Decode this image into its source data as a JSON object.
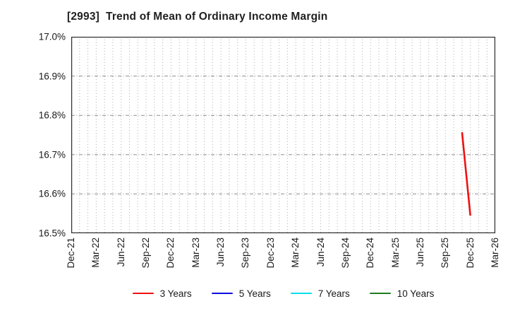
{
  "page": {
    "background": "#ffffff"
  },
  "chart_data": {
    "type": "line",
    "title": "[2993]  Trend of Mean of Ordinary Income Margin",
    "xlabel": "",
    "ylabel": "",
    "ylim": [
      16.5,
      17.0
    ],
    "yticks": [
      {
        "value": 17.0,
        "label": "17.0%"
      },
      {
        "value": 16.9,
        "label": "16.9%"
      },
      {
        "value": 16.8,
        "label": "16.8%"
      },
      {
        "value": 16.7,
        "label": "16.7%"
      },
      {
        "value": 16.6,
        "label": "16.6%"
      },
      {
        "value": 16.5,
        "label": "16.5%"
      }
    ],
    "x_intervals": 51,
    "x_minor_unit": "month",
    "xticks": [
      {
        "index": 0,
        "label": "Dec-21"
      },
      {
        "index": 3,
        "label": "Mar-22"
      },
      {
        "index": 6,
        "label": "Jun-22"
      },
      {
        "index": 9,
        "label": "Sep-22"
      },
      {
        "index": 12,
        "label": "Dec-22"
      },
      {
        "index": 15,
        "label": "Mar-23"
      },
      {
        "index": 18,
        "label": "Jun-23"
      },
      {
        "index": 21,
        "label": "Sep-23"
      },
      {
        "index": 24,
        "label": "Dec-23"
      },
      {
        "index": 27,
        "label": "Mar-24"
      },
      {
        "index": 30,
        "label": "Jun-24"
      },
      {
        "index": 33,
        "label": "Sep-24"
      },
      {
        "index": 36,
        "label": "Dec-24"
      },
      {
        "index": 39,
        "label": "Mar-25"
      },
      {
        "index": 42,
        "label": "Jun-25"
      },
      {
        "index": 45,
        "label": "Sep-25"
      },
      {
        "index": 48,
        "label": "Dec-25"
      },
      {
        "index": 51,
        "label": "Mar-26"
      }
    ],
    "grid": {
      "vertical": "dotted every month",
      "horizontal": "dash-dot every 0.1%"
    },
    "legend_position": "bottom-center",
    "series": [
      {
        "name": "3 Years",
        "color": "#ee1111",
        "points": [
          {
            "x_index": 47,
            "x_label": "Nov-25",
            "y": 16.757
          },
          {
            "x_index": 48,
            "x_label": "Dec-25",
            "y": 16.545
          }
        ]
      },
      {
        "name": "5 Years",
        "color": "#0d0dde",
        "points": []
      },
      {
        "name": "7 Years",
        "color": "#00dfe8",
        "points": []
      },
      {
        "name": "10 Years",
        "color": "#1e7d1e",
        "points": []
      }
    ],
    "colors": {
      "plot_border": "#2a2a2a",
      "grid_vertical": "#b0b0b0",
      "grid_horizontal": "#8f8f8f",
      "text": "#1a1a1a"
    }
  }
}
